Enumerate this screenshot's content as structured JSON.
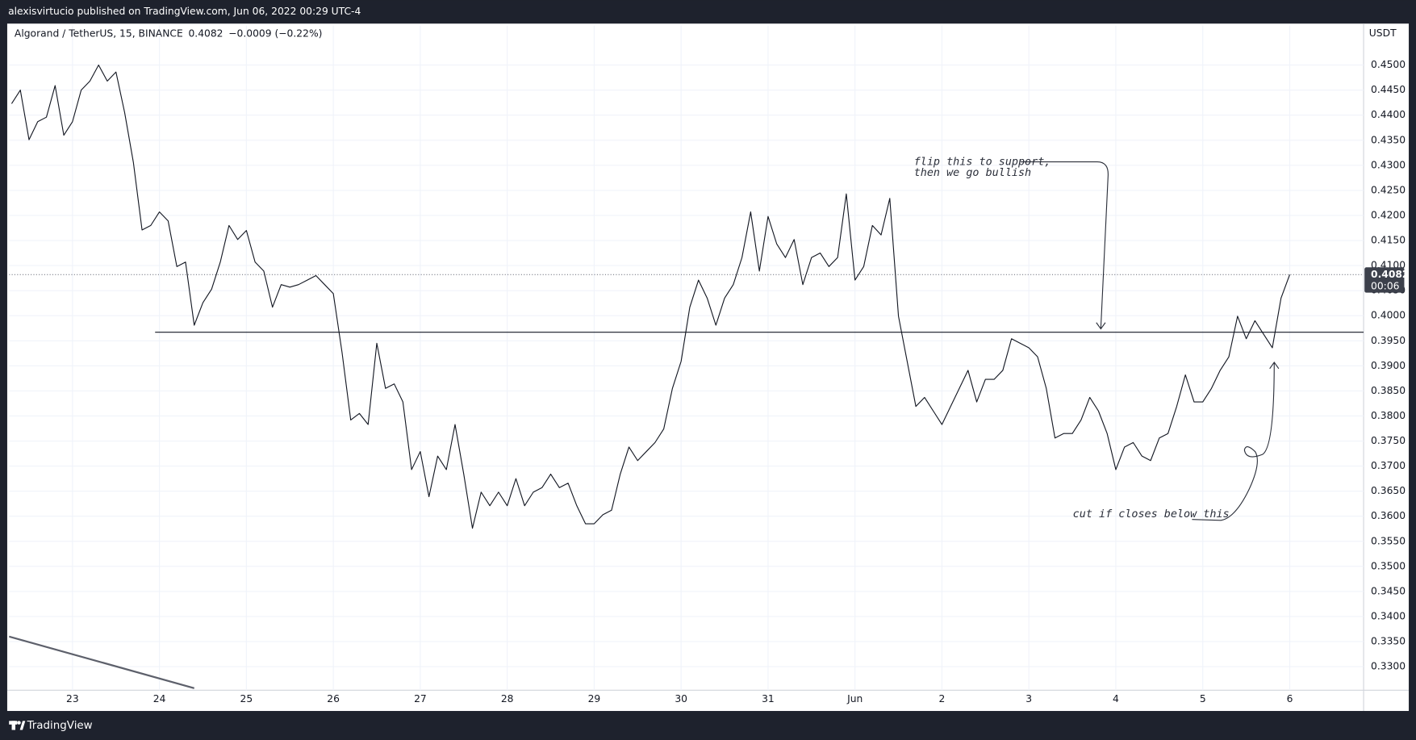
{
  "header": "alexisvirtucio published on TradingView.com, Jun 06, 2022 00:29 UTC-4",
  "footer": "TradingView",
  "chart_data": {
    "type": "line",
    "unit": "USDT",
    "x": [
      22.3,
      22.4,
      22.5,
      22.6,
      22.7,
      22.8,
      22.9,
      23.0,
      23.1,
      23.2,
      23.3,
      23.4,
      23.5,
      23.6,
      23.7,
      23.8,
      23.9,
      24.0,
      24.1,
      24.2,
      24.3,
      24.4,
      24.5,
      24.6,
      24.7,
      24.8,
      24.9,
      25.0,
      25.1,
      25.2,
      25.3,
      25.4,
      25.5,
      25.6,
      25.7,
      25.8,
      25.9,
      26.0,
      26.1,
      26.2,
      26.3,
      26.4,
      26.5,
      26.6,
      26.7,
      26.8,
      26.9,
      27.0,
      27.1,
      27.2,
      27.3,
      27.4,
      27.5,
      27.6,
      27.7,
      27.8,
      27.9,
      28.0,
      28.1,
      28.2,
      28.3,
      28.4,
      28.5,
      28.6,
      28.7,
      28.8,
      28.9,
      29.0,
      29.1,
      29.2,
      29.3,
      29.4,
      29.5,
      29.6,
      29.7,
      29.8,
      29.9,
      30.0,
      30.1,
      30.2,
      30.3,
      30.4,
      30.5,
      30.6,
      30.7,
      30.8,
      30.9,
      31.0,
      31.1,
      31.2,
      31.3,
      31.4,
      31.5,
      31.6,
      31.7,
      31.8,
      31.9,
      32.0,
      32.1,
      32.2,
      32.3,
      32.4,
      32.5,
      32.6,
      32.7,
      32.8,
      32.9,
      33.0,
      33.1,
      33.2,
      33.3,
      33.4,
      33.5,
      33.6,
      33.7,
      33.8,
      33.9,
      34.0,
      34.1,
      34.2,
      34.3,
      34.4,
      34.5,
      34.6,
      34.7,
      34.8,
      34.9,
      35.0,
      35.1,
      35.2,
      35.3,
      35.4,
      35.5,
      35.6,
      35.7,
      35.8,
      35.9,
      36.0,
      36.1,
      36.2,
      36.3,
      36.4,
      36.5,
      36.6,
      36.7,
      36.8,
      36.9,
      37.0
    ],
    "series": [
      {
        "name": "Algorand / TetherUS, 15, BINANCE",
        "color": "#131722",
        "values": [
          0.4423,
          0.445,
          0.4351,
          0.4387,
          0.4396,
          0.4459,
          0.436,
          0.4387,
          0.445,
          0.4468,
          0.45,
          0.4468,
          0.4486,
          0.4405,
          0.4306,
          0.4171,
          0.418,
          0.4207,
          0.4189,
          0.4098,
          0.4107,
          0.3981,
          0.4026,
          0.4053,
          0.4107,
          0.418,
          0.4152,
          0.417,
          0.4107,
          0.4089,
          0.4017,
          0.4062,
          0.4057,
          0.4062,
          0.4071,
          0.408,
          0.4062,
          0.4044,
          0.3927,
          0.3792,
          0.3805,
          0.3783,
          0.3945,
          0.3855,
          0.3864,
          0.3828,
          0.3693,
          0.3729,
          0.3639,
          0.372,
          0.3693,
          0.3783,
          0.3684,
          0.3576,
          0.3648,
          0.3621,
          0.3648,
          0.3621,
          0.3675,
          0.3621,
          0.3648,
          0.3657,
          0.3684,
          0.3657,
          0.3666,
          0.3621,
          0.3585,
          0.3585,
          0.3603,
          0.3612,
          0.3684,
          0.3738,
          0.3711,
          0.3729,
          0.3747,
          0.3774,
          0.3855,
          0.3909,
          0.4017,
          0.4071,
          0.4035,
          0.3981,
          0.4035,
          0.4062,
          0.4116,
          0.4207,
          0.4089,
          0.4198,
          0.4143,
          0.4116,
          0.4152,
          0.4062,
          0.4116,
          0.4125,
          0.4098,
          0.4116,
          0.4243,
          0.4071,
          0.4098,
          0.418,
          0.4161,
          0.4234,
          0.3999,
          0.3909,
          0.3819,
          0.3837,
          0.381,
          0.3783,
          0.3819,
          0.3855,
          0.3891,
          0.3828,
          0.3873,
          0.3873,
          0.3891,
          0.3954,
          0.3945,
          0.3936,
          0.3918,
          0.3855,
          0.3756,
          0.3765,
          0.3765,
          0.3792,
          0.3837,
          0.381,
          0.3765,
          0.3693,
          0.3738,
          0.3747,
          0.372,
          0.3711,
          0.3756,
          0.3765,
          0.3819,
          0.3882,
          0.3828,
          0.3828,
          0.3855,
          0.3891,
          0.3918,
          0.3999,
          0.3954,
          0.399,
          0.3963,
          0.3936,
          0.4035,
          0.4082
        ]
      }
    ],
    "last_price": 0.4082,
    "change": "−0.0009 (−0.22%)",
    "countdown": "00:06",
    "horizontal_line": {
      "value": 0.3967,
      "x_start": 23.95
    },
    "trend_line": {
      "x": [
        22.27,
        24.4
      ],
      "values": [
        0.336,
        0.3257
      ]
    },
    "annotations": [
      "flip this to support,",
      "then we go bullish",
      "cut if closes below this"
    ],
    "xlim": [
      22.27,
      37.85
    ],
    "ylim": [
      0.3253,
      0.4579
    ],
    "xticks": [
      23,
      24,
      25,
      26,
      27,
      28,
      29,
      30,
      31,
      {
        "value": 32,
        "label": "Jun"
      },
      {
        "value": 33,
        "label": "2"
      },
      {
        "value": 34,
        "label": "3"
      },
      {
        "value": 35,
        "label": "4"
      },
      {
        "value": 36,
        "label": "5"
      },
      {
        "value": 37,
        "label": "6"
      }
    ],
    "yticks": [
      {
        "value": 0.33,
        "label": "0.3300"
      },
      {
        "value": 0.335,
        "label": "0.3350"
      },
      {
        "value": 0.34,
        "label": "0.3400"
      },
      {
        "value": 0.345,
        "label": "0.3450"
      },
      {
        "value": 0.35,
        "label": "0.3500"
      },
      {
        "value": 0.355,
        "label": "0.3550"
      },
      {
        "value": 0.36,
        "label": "0.3600"
      },
      {
        "value": 0.365,
        "label": "0.3650"
      },
      {
        "value": 0.37,
        "label": "0.3700"
      },
      {
        "value": 0.375,
        "label": "0.3750"
      },
      {
        "value": 0.38,
        "label": "0.3800"
      },
      {
        "value": 0.385,
        "label": "0.3850"
      },
      {
        "value": 0.39,
        "label": "0.3900"
      },
      {
        "value": 0.395,
        "label": "0.3950"
      },
      {
        "value": 0.4,
        "label": "0.4000"
      },
      {
        "value": 0.405,
        "label": "0.4050"
      },
      {
        "value": 0.41,
        "label": "0.4100"
      },
      {
        "value": 0.415,
        "label": "0.4150"
      },
      {
        "value": 0.42,
        "label": "0.4200"
      },
      {
        "value": 0.425,
        "label": "0.4250"
      },
      {
        "value": 0.43,
        "label": "0.4300"
      },
      {
        "value": 0.435,
        "label": "0.4350"
      },
      {
        "value": 0.44,
        "label": "0.4400"
      },
      {
        "value": 0.445,
        "label": "0.4450"
      },
      {
        "value": 0.45,
        "label": "0.4500"
      }
    ],
    "grid": true
  }
}
